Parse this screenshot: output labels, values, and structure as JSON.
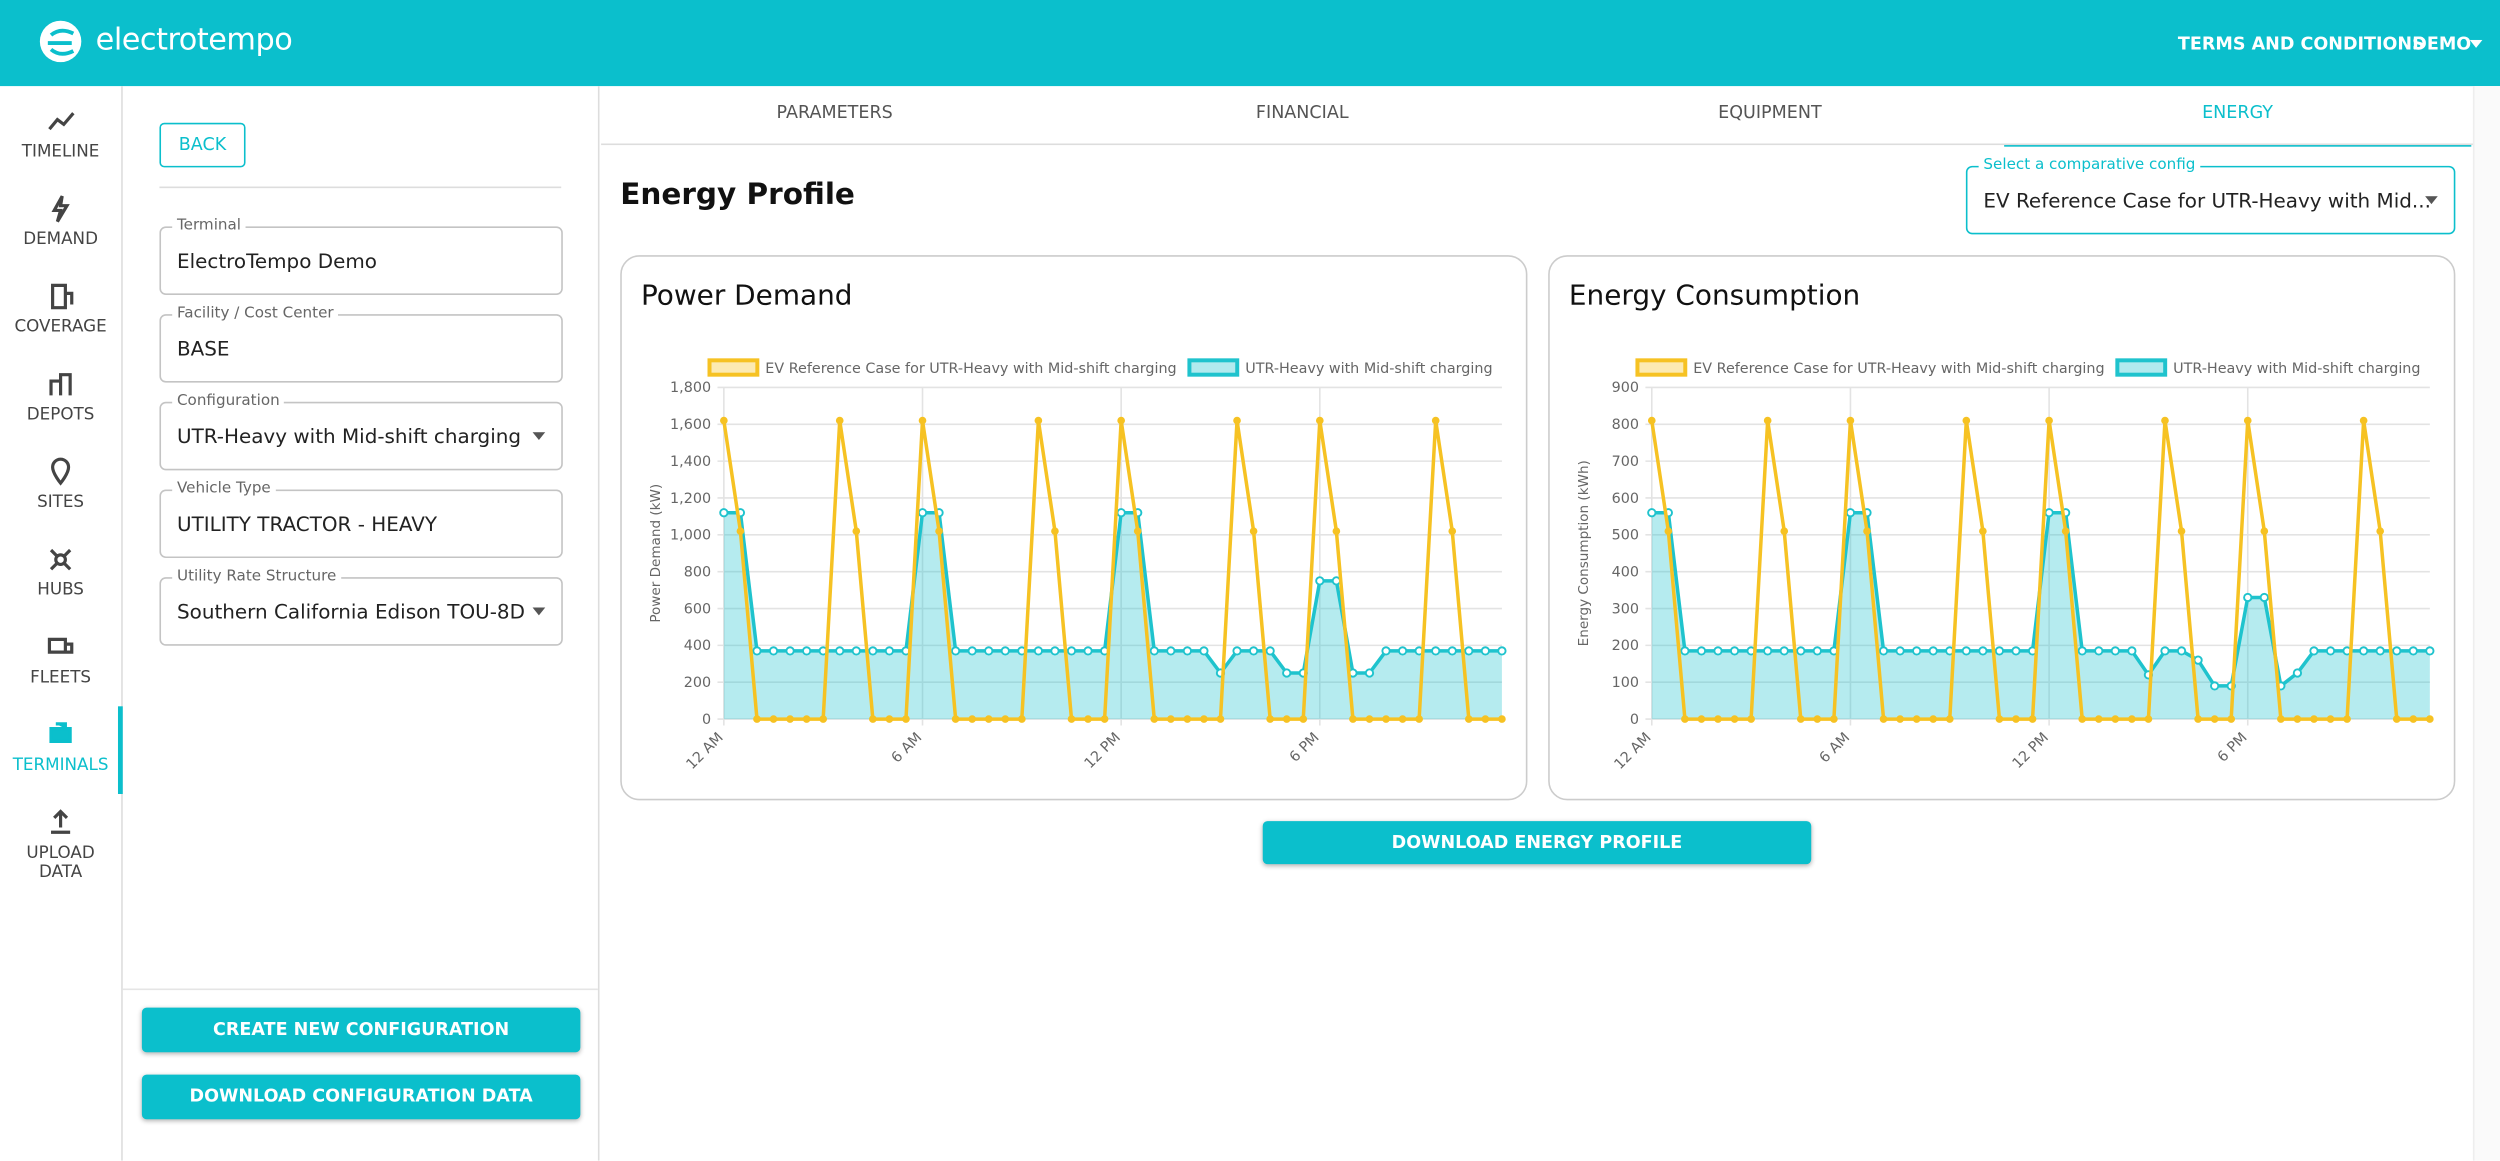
{
  "header": {
    "brand": "electrotempo",
    "links": [
      "TERMS AND CONDITIONS",
      "DEMO"
    ]
  },
  "nav": [
    "TIMELINE",
    "DEMAND",
    "COVERAGE",
    "DEPOTS",
    "SITES",
    "HUBS",
    "FLEETS",
    "TERMINALS",
    "UPLOAD DATA"
  ],
  "config": {
    "back": "BACK",
    "fields": [
      {
        "label": "Terminal",
        "value": "ElectroTempo Demo"
      },
      {
        "label": "Facility / Cost Center",
        "value": "BASE"
      },
      {
        "label": "Configuration",
        "value": "UTR-Heavy with Mid-shift charging"
      },
      {
        "label": "Vehicle Type",
        "value": "UTILITY TRACTOR - HEAVY"
      },
      {
        "label": "Utility Rate Structure",
        "value": "Southern California Edison TOU-8D"
      }
    ],
    "buttons": [
      "CREATE NEW CONFIGURATION",
      "DOWNLOAD CONFIGURATION DATA"
    ]
  },
  "tabs": [
    "PARAMETERS",
    "FINANCIAL",
    "EQUIPMENT",
    "ENERGY"
  ],
  "page_title": "Energy Profile",
  "compare": {
    "label": "Select a comparative config",
    "value": "EV Reference Case for UTR-Heavy with Mid..."
  },
  "download": "DOWNLOAD ENERGY PROFILE",
  "chart_data": [
    {
      "type": "line",
      "title": "Power Demand",
      "y_label": "Power Demand (kW)",
      "categories": [
        "12 AM",
        null,
        null,
        null,
        null,
        null,
        null,
        null,
        null,
        null,
        null,
        null,
        "6 AM",
        null,
        null,
        null,
        null,
        null,
        null,
        null,
        null,
        null,
        null,
        null,
        "12 PM",
        null,
        null,
        null,
        null,
        null,
        null,
        null,
        null,
        null,
        null,
        null,
        "6 PM",
        null,
        null,
        null,
        null,
        null,
        null,
        null,
        null,
        null,
        null,
        null
      ],
      "series": [
        {
          "name": "EV Reference Case for UTR-Heavy with Mid-shift charging",
          "color": "#f6c223",
          "values": [
            1620,
            1020,
            0,
            0,
            0,
            0,
            0,
            1620,
            1020,
            0,
            0,
            0,
            1620,
            1020,
            0,
            0,
            0,
            0,
            0,
            1620,
            1020,
            0,
            0,
            0,
            1620,
            1020,
            0,
            0,
            0,
            0,
            0,
            1620,
            1020,
            0,
            0,
            0,
            1620,
            1020,
            0,
            0,
            0,
            0,
            0,
            1620,
            1020,
            0,
            0,
            0
          ]
        },
        {
          "name": "UTR-Heavy with Mid-shift charging",
          "color": "#1fc3cd",
          "area": true,
          "values": [
            1120,
            1120,
            370,
            370,
            370,
            370,
            370,
            370,
            370,
            370,
            370,
            370,
            1120,
            1120,
            370,
            370,
            370,
            370,
            370,
            370,
            370,
            370,
            370,
            370,
            1120,
            1120,
            370,
            370,
            370,
            370,
            250,
            370,
            370,
            370,
            250,
            250,
            750,
            750,
            250,
            250,
            370,
            370,
            370,
            370,
            370,
            370,
            370,
            370
          ]
        }
      ],
      "ylim": [
        0,
        1800
      ],
      "yticks": [
        0,
        200,
        400,
        600,
        800,
        {
          "value": 1000,
          "label": "1,000"
        },
        {
          "value": 1200,
          "label": "1,200"
        },
        {
          "value": 1400,
          "label": "1,400"
        },
        {
          "value": 1600,
          "label": "1,600"
        },
        {
          "value": 1800,
          "label": "1,800"
        }
      ],
      "grid": true
    },
    {
      "type": "line",
      "title": "Energy Consumption",
      "y_label": "Energy Consumption (kWh)",
      "categories": [
        "12 AM",
        null,
        null,
        null,
        null,
        null,
        null,
        null,
        null,
        null,
        null,
        null,
        "6 AM",
        null,
        null,
        null,
        null,
        null,
        null,
        null,
        null,
        null,
        null,
        null,
        "12 PM",
        null,
        null,
        null,
        null,
        null,
        null,
        null,
        null,
        null,
        null,
        null,
        "6 PM",
        null,
        null,
        null,
        null,
        null,
        null,
        null,
        null,
        null,
        null,
        null
      ],
      "series": [
        {
          "name": "EV Reference Case for UTR-Heavy with Mid-shift charging",
          "color": "#f6c223",
          "values": [
            810,
            510,
            0,
            0,
            0,
            0,
            0,
            810,
            510,
            0,
            0,
            0,
            810,
            510,
            0,
            0,
            0,
            0,
            0,
            810,
            510,
            0,
            0,
            0,
            810,
            510,
            0,
            0,
            0,
            0,
            0,
            810,
            510,
            0,
            0,
            0,
            810,
            510,
            0,
            0,
            0,
            0,
            0,
            810,
            510,
            0,
            0,
            0
          ]
        },
        {
          "name": "UTR-Heavy with Mid-shift charging",
          "color": "#1fc3cd",
          "area": true,
          "values": [
            560,
            560,
            185,
            185,
            185,
            185,
            185,
            185,
            185,
            185,
            185,
            185,
            560,
            560,
            185,
            185,
            185,
            185,
            185,
            185,
            185,
            185,
            185,
            185,
            560,
            560,
            185,
            185,
            185,
            185,
            120,
            185,
            185,
            160,
            90,
            90,
            330,
            330,
            90,
            125,
            185,
            185,
            185,
            185,
            185,
            185,
            185,
            185
          ]
        }
      ],
      "ylim": [
        0,
        900
      ],
      "yticks": [
        0,
        100,
        200,
        300,
        400,
        500,
        600,
        700,
        800,
        900
      ],
      "grid": true
    }
  ]
}
